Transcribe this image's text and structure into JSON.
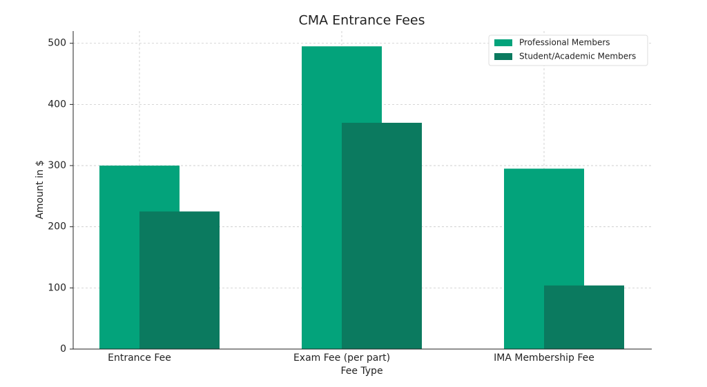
{
  "chart_data": {
    "type": "bar",
    "title": "CMA Entrance Fees",
    "x_label": "Fee Type",
    "y_label": "Amount in $",
    "categories": [
      "Entrance Fee",
      "Exam Fee (per part)",
      "IMA Membership Fee"
    ],
    "series": [
      {
        "name": "Professional Members",
        "color": "#03a37b",
        "values": [
          300,
          495,
          295
        ]
      },
      {
        "name": "Student/Academic Members",
        "color": "#0b7a5f",
        "values": [
          225,
          370,
          104
        ]
      }
    ],
    "ylim": [
      0,
      520
    ],
    "yticks": [
      0,
      100,
      200,
      300,
      400,
      500
    ],
    "grid": true,
    "legend": "upper right"
  }
}
